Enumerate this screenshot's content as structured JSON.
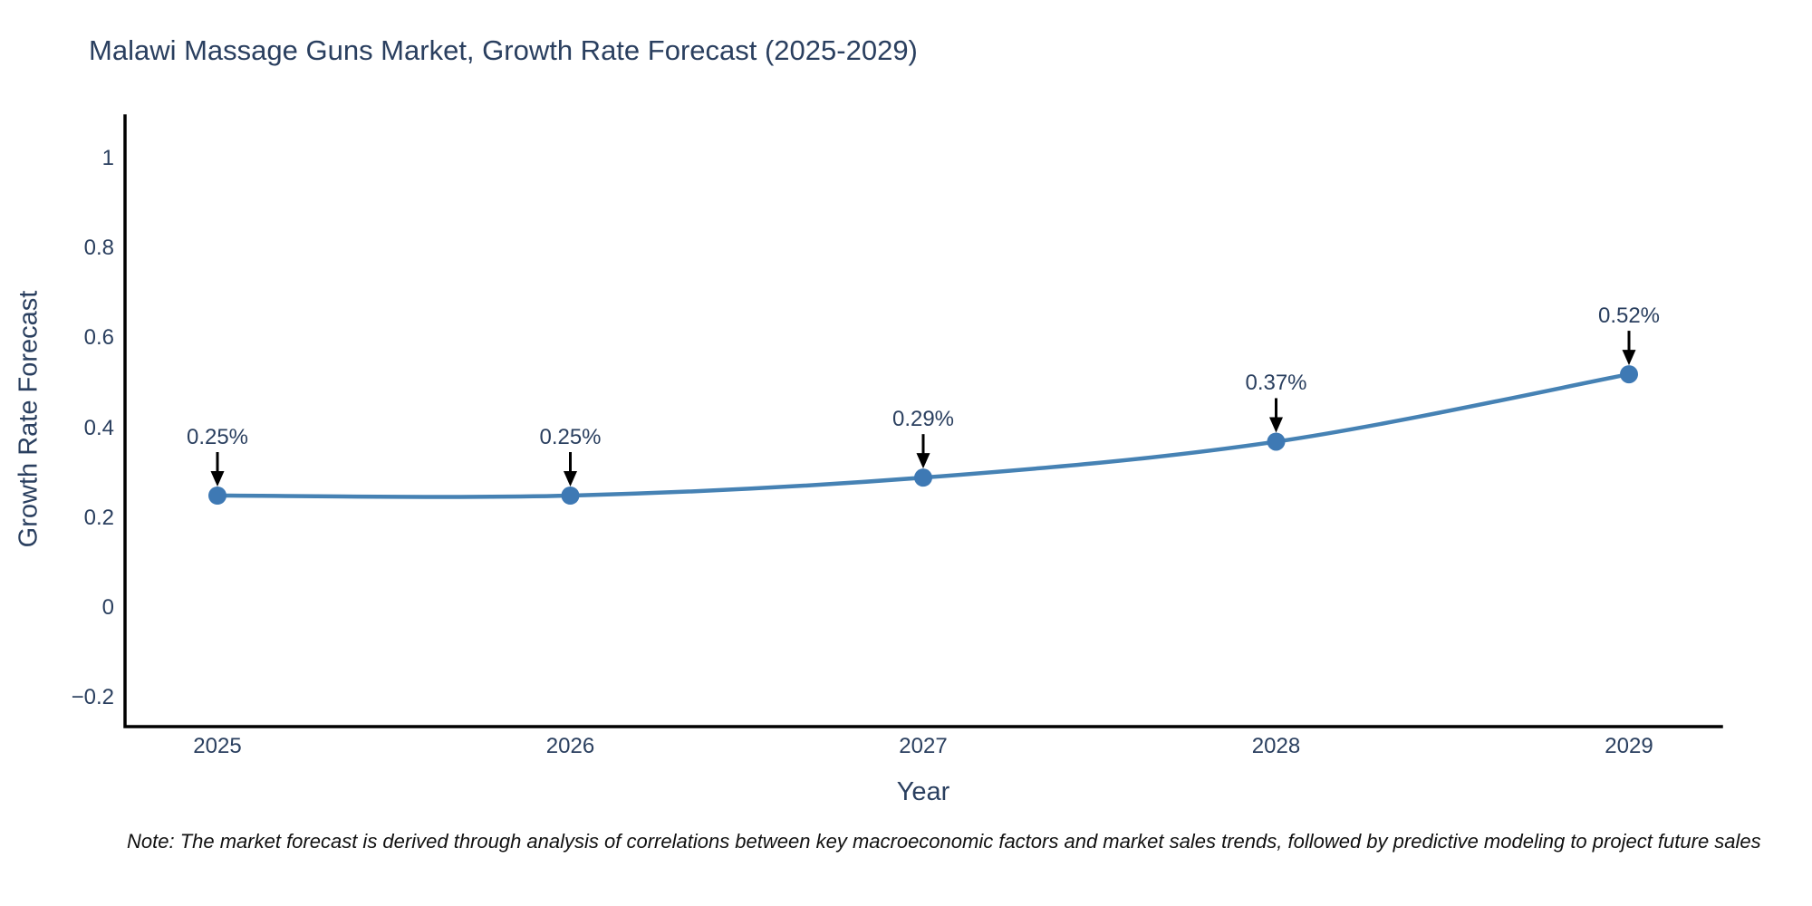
{
  "chart_data": {
    "type": "line",
    "title": "Malawi Massage Guns Market, Growth Rate Forecast (2025-2029)",
    "xlabel": "Year",
    "ylabel": "Growth Rate Forecast",
    "categories": [
      "2025",
      "2026",
      "2027",
      "2028",
      "2029"
    ],
    "values": [
      0.25,
      0.25,
      0.29,
      0.37,
      0.52
    ],
    "point_labels": [
      "0.25%",
      "0.25%",
      "0.29%",
      "0.37%",
      "0.52%"
    ],
    "yticks": {
      "values": [
        1,
        0.8,
        0.6,
        0.4,
        0.2,
        0,
        -0.2
      ],
      "labels": [
        "1",
        "0.8",
        "0.6",
        "0.4",
        "0.2",
        "0",
        "−0.2"
      ]
    },
    "ylim": [
      -0.26,
      1.1
    ],
    "grid": false,
    "legend_position": "none",
    "colors": {
      "line": "#4682b4",
      "marker": "#3e79b4",
      "axis": "#000000",
      "text": "#2a3f5f",
      "annotation_arrow": "#000000",
      "note_text": "#111111"
    }
  },
  "footnote": "Note: The market forecast is derived through analysis of correlations between key macroeconomic factors and market sales trends, followed by predictive modeling to project future sales"
}
